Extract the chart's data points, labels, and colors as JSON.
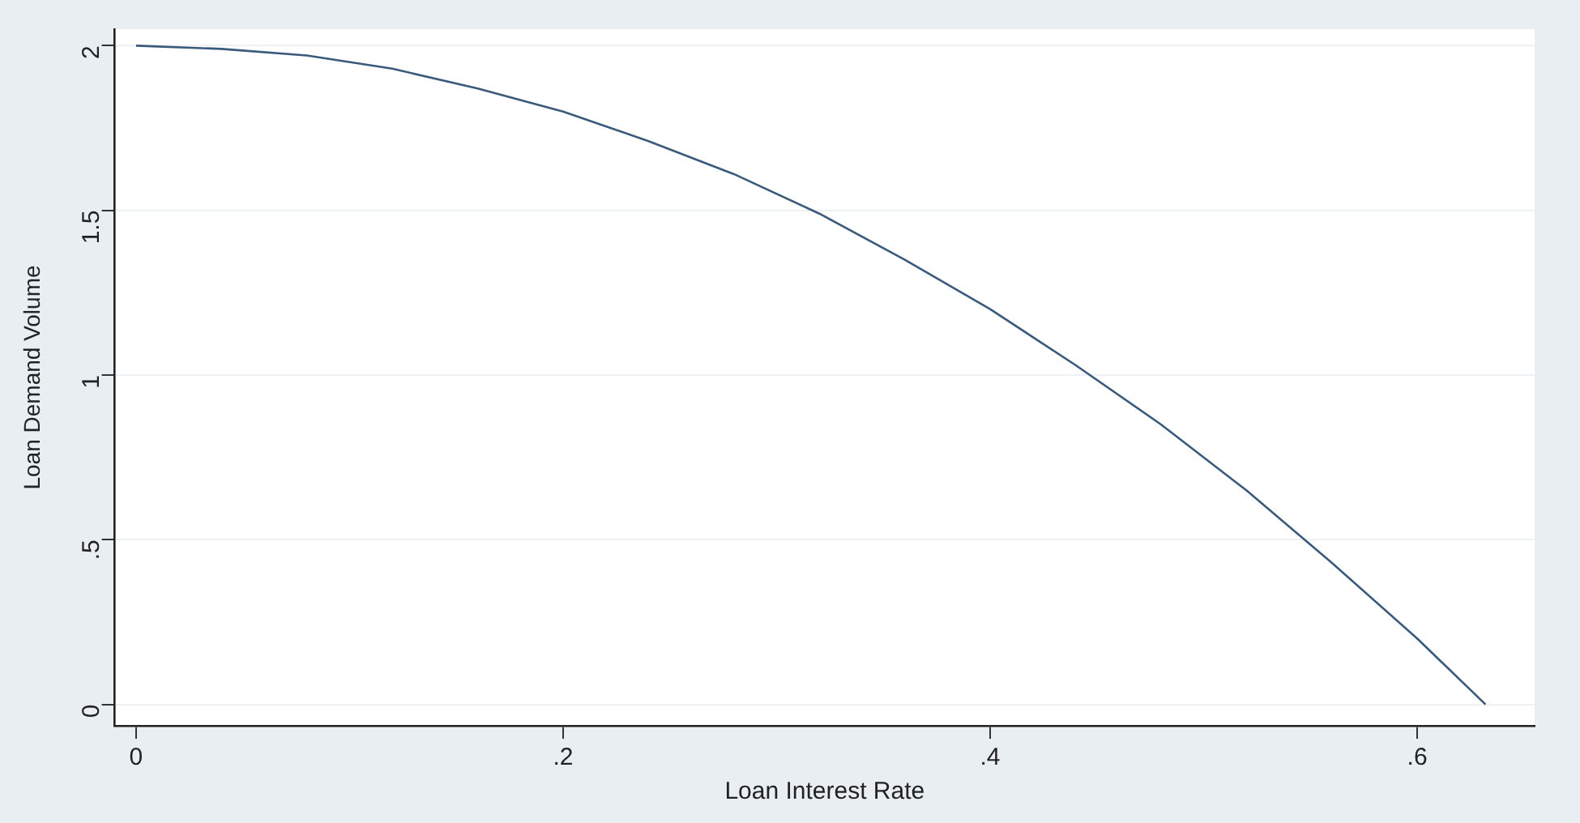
{
  "chart_data": {
    "type": "line",
    "xlabel": "Loan Interest Rate",
    "ylabel": "Loan Demand Volume",
    "x": [
      0,
      0.04,
      0.08,
      0.12,
      0.16,
      0.2,
      0.24,
      0.28,
      0.32,
      0.36,
      0.4,
      0.44,
      0.48,
      0.52,
      0.56,
      0.6,
      0.632
    ],
    "series": [
      {
        "color": "#3a5a7c",
        "values": [
          2,
          1.99,
          1.97,
          1.93,
          1.87,
          1.8,
          1.71,
          1.61,
          1.49,
          1.35,
          1.2,
          1.03,
          0.85,
          0.65,
          0.43,
          0.2,
          0
        ]
      }
    ],
    "xlim": [
      -0.01,
      0.655
    ],
    "ylim": [
      -0.065,
      2.05
    ],
    "xticks": [
      0,
      {
        "value": 0.2,
        "label": ".2"
      },
      {
        "value": 0.4,
        "label": ".4"
      },
      {
        "value": 0.6,
        "label": ".6"
      }
    ],
    "yticks": [
      0,
      {
        "value": 0.5,
        "label": ".5"
      },
      1,
      1.5,
      2
    ],
    "grid": "y",
    "marker": "none",
    "line_style": "solid",
    "legend": false
  }
}
